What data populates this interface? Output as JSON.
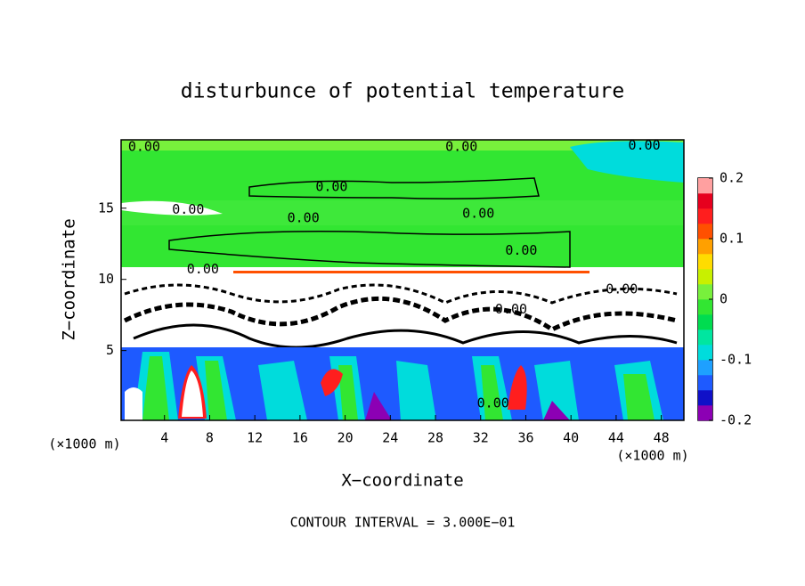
{
  "chart_data": {
    "type": "contour",
    "title": "disturbunce of potential temperature",
    "xlabel": "X−coordinate",
    "ylabel": "Z−coordinate",
    "xunit": "(×1000 m)",
    "yunit": "(×1000 m)",
    "annotation": "CONTOUR INTERVAL = 3.000E−01",
    "xlim": [
      0,
      50
    ],
    "xticks": [
      4,
      8,
      12,
      16,
      20,
      24,
      28,
      32,
      36,
      40,
      44,
      48
    ],
    "ylim": [
      0.1,
      19.8
    ],
    "yticks": [
      5,
      10,
      15
    ],
    "clim": [
      -0.2,
      0.2
    ],
    "cticks": [
      0.2,
      0.1,
      0,
      -0.1,
      -0.2
    ],
    "colors": [
      "#8c00b4",
      "#1010c8",
      "#1e5aff",
      "#1ea0ff",
      "#00dcdc",
      "#00e6a0",
      "#00dc50",
      "#32e632",
      "#78f03c",
      "#c8f000",
      "#ffdc00",
      "#ffa000",
      "#ff5000",
      "#ff1e1e",
      "#e6001e",
      "#ffa0a0"
    ],
    "contour_labels": [
      {
        "text": "0.00",
        "x": 2.2,
        "y": 19.3
      },
      {
        "text": "0.00",
        "x": 30.3,
        "y": 19.3
      },
      {
        "text": "0.00",
        "x": 46.5,
        "y": 19.4
      },
      {
        "text": "0.00",
        "x": 18.8,
        "y": 16.5
      },
      {
        "text": "0.00",
        "x": 6.1,
        "y": 14.9
      },
      {
        "text": "0.00",
        "x": 31.8,
        "y": 14.6
      },
      {
        "text": "0.00",
        "x": 16.3,
        "y": 14.3
      },
      {
        "text": "0.00",
        "x": 35.6,
        "y": 12.0
      },
      {
        "text": "0.00",
        "x": 7.4,
        "y": 10.7
      },
      {
        "text": "0.00",
        "x": 34.7,
        "y": 7.9
      },
      {
        "text": "0.00",
        "x": 44.5,
        "y": 9.3
      },
      {
        "text": "0.00",
        "x": 33.1,
        "y": 1.3
      }
    ]
  }
}
